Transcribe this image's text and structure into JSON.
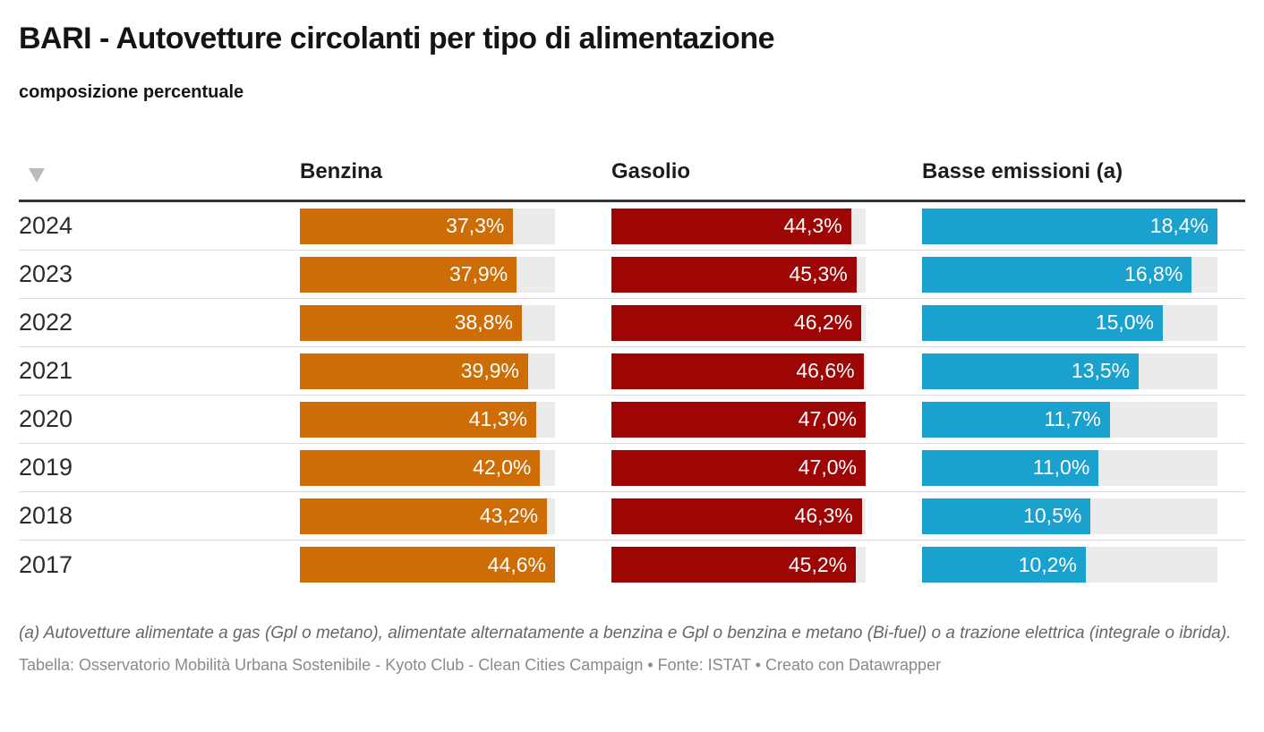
{
  "header": {
    "title": "BARI - Autovetture circolanti per tipo di alimentazione",
    "subtitle": "composizione percentuale"
  },
  "table": {
    "sort_icon": "triangle-down",
    "columns": [
      {
        "key": "benzina",
        "label": "Benzina"
      },
      {
        "key": "gasolio",
        "label": "Gasolio"
      },
      {
        "key": "basse",
        "label": "Basse emissioni (a)"
      }
    ]
  },
  "colors": {
    "benzina": "#CE6D05",
    "gasolio": "#9D0605",
    "basse_emissioni": "#1AA1CE",
    "bar_track": "#EBEBEB",
    "header_rule": "#333333",
    "row_divider": "#DCDCDC",
    "sort_icon": "#BBBBBB"
  },
  "chart_data": {
    "type": "bar",
    "orientation": "horizontal",
    "title": "BARI - Autovetture circolanti per tipo di alimentazione",
    "subtitle": "composizione percentuale",
    "value_format": "percent with comma decimal",
    "grid": false,
    "legend_position": "column headers",
    "categories": [
      "2024",
      "2023",
      "2022",
      "2021",
      "2020",
      "2019",
      "2018",
      "2017"
    ],
    "series": [
      {
        "key": "benzina",
        "name": "Benzina",
        "color": "#CE6D05",
        "axis_max": 44.6,
        "values": [
          37.3,
          37.9,
          38.8,
          39.9,
          41.3,
          42.0,
          43.2,
          44.6
        ],
        "labels": [
          "37,3%",
          "37,9%",
          "38,8%",
          "39,9%",
          "41,3%",
          "42,0%",
          "43,2%",
          "44,6%"
        ]
      },
      {
        "key": "gasolio",
        "name": "Gasolio",
        "color": "#9D0605",
        "axis_max": 47.0,
        "values": [
          44.3,
          45.3,
          46.2,
          46.6,
          47.0,
          47.0,
          46.3,
          45.2
        ],
        "labels": [
          "44,3%",
          "45,3%",
          "46,2%",
          "46,6%",
          "47,0%",
          "47,0%",
          "46,3%",
          "45,2%"
        ]
      },
      {
        "key": "basse",
        "name": "Basse emissioni (a)",
        "color": "#1AA1CE",
        "axis_max": 18.4,
        "values": [
          18.4,
          16.8,
          15.0,
          13.5,
          11.7,
          11.0,
          10.5,
          10.2
        ],
        "labels": [
          "18,4%",
          "16,8%",
          "15,0%",
          "13,5%",
          "11,7%",
          "11,0%",
          "10,5%",
          "10,2%"
        ]
      }
    ]
  },
  "footer": {
    "footnote": "(a) Autovetture alimentate a gas (Gpl o metano), alimentate alternatamente a benzina e Gpl o benzina e metano (Bi-fuel) o a trazione elettrica (integrale o ibrida).",
    "source_line": "Tabella: Osservatorio Mobilità Urbana Sostenibile - Kyoto Club - Clean Cities Campaign • Fonte: ISTAT • Creato con Datawrapper"
  }
}
